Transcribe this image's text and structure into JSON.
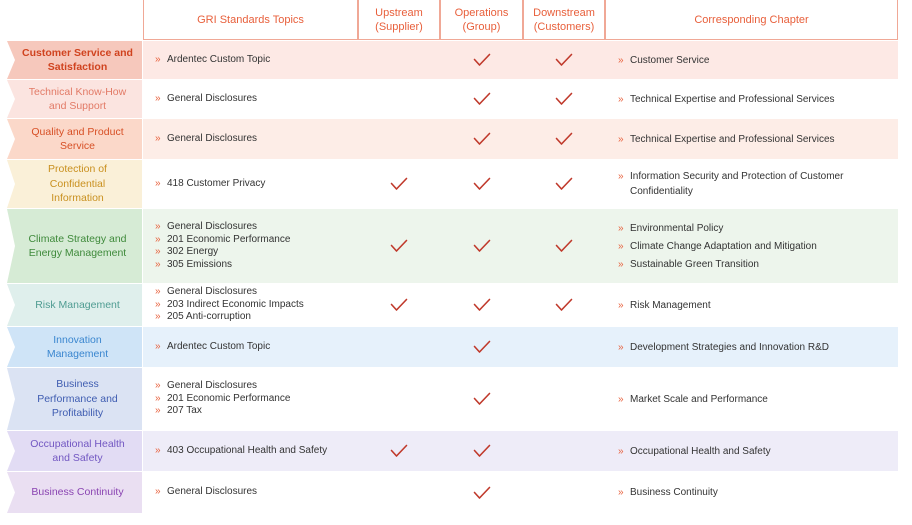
{
  "header": {
    "gri": "GRI Standards Topics",
    "upstream": "Upstream\n(Supplier)",
    "upstream_l1": "Upstream",
    "upstream_l2": "(Supplier)",
    "operations_l1": "Operations",
    "operations_l2": "(Group)",
    "downstream_l1": "Downstream",
    "downstream_l2": "(Customers)",
    "chapter": "Corresponding Chapter"
  },
  "colors": {
    "accent": "#e8603c",
    "check": "#c0392b"
  },
  "rows": [
    {
      "topic_l1": "Customer Service and",
      "topic_l2": "Satisfaction",
      "topic_l3": "",
      "gri": [
        "Ardentec Custom Topic"
      ],
      "upstream": false,
      "operations": true,
      "downstream": true,
      "chapter": [
        "Customer Service"
      ]
    },
    {
      "topic_l1": "Technical Know-How",
      "topic_l2": "and Support",
      "topic_l3": "",
      "gri": [
        "General Disclosures"
      ],
      "upstream": false,
      "operations": true,
      "downstream": true,
      "chapter": [
        "Technical Expertise and Professional Services"
      ]
    },
    {
      "topic_l1": "Quality and Product",
      "topic_l2": "Service",
      "topic_l3": "",
      "gri": [
        "General Disclosures"
      ],
      "upstream": false,
      "operations": true,
      "downstream": true,
      "chapter": [
        "Technical Expertise and Professional Services"
      ]
    },
    {
      "topic_l1": "Protection of",
      "topic_l2": "Confidential",
      "topic_l3": "Information",
      "gri": [
        "418 Customer Privacy"
      ],
      "upstream": true,
      "operations": true,
      "downstream": true,
      "chapter": [
        "Information Security and Protection of Customer Confidentiality"
      ]
    },
    {
      "topic_l1": "Climate Strategy and",
      "topic_l2": "Energy Management",
      "topic_l3": "",
      "gri": [
        "General Disclosures",
        "201 Economic Performance",
        "302 Energy",
        "305 Emissions"
      ],
      "upstream": true,
      "operations": true,
      "downstream": true,
      "chapter": [
        "Environmental Policy",
        "Climate Change Adaptation and Mitigation",
        "Sustainable Green Transition"
      ]
    },
    {
      "topic_l1": "Risk Management",
      "topic_l2": "",
      "topic_l3": "",
      "gri": [
        "General Disclosures",
        "203 Indirect Economic Impacts",
        "205 Anti-corruption"
      ],
      "upstream": true,
      "operations": true,
      "downstream": true,
      "chapter": [
        "Risk Management"
      ]
    },
    {
      "topic_l1": "Innovation",
      "topic_l2": "Management",
      "topic_l3": "",
      "gri": [
        "Ardentec Custom Topic"
      ],
      "upstream": false,
      "operations": true,
      "downstream": false,
      "chapter": [
        "Development Strategies and Innovation R&D"
      ]
    },
    {
      "topic_l1": "Business",
      "topic_l2": "Performance and",
      "topic_l3": "Profitability",
      "gri": [
        "General Disclosures",
        "201 Economic Performance",
        "207 Tax"
      ],
      "upstream": false,
      "operations": true,
      "downstream": false,
      "chapter": [
        "Market Scale and Performance"
      ]
    },
    {
      "topic_l1": "Occupational Health",
      "topic_l2": "and Safety",
      "topic_l3": "",
      "gri": [
        "403 Occupational Health and Safety"
      ],
      "upstream": true,
      "operations": true,
      "downstream": false,
      "chapter": [
        "Occupational Health and Safety"
      ]
    },
    {
      "topic_l1": "Business Continuity",
      "topic_l2": "",
      "topic_l3": "",
      "gri": [
        "General Disclosures"
      ],
      "upstream": false,
      "operations": true,
      "downstream": false,
      "chapter": [
        "Business Continuity"
      ]
    }
  ]
}
